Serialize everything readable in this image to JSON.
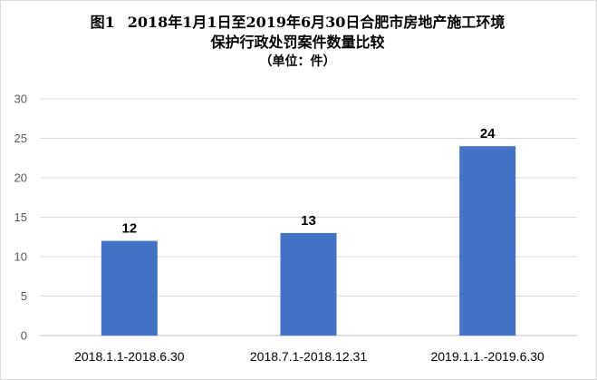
{
  "title": {
    "figure_no": "图1",
    "line1": "2018年1月1日至2019年6月30日合肥市房地产施工环境",
    "line2": "保护行政处罚案件数量比较",
    "unit": "（单位：件）"
  },
  "colors": {
    "bar": "#4472c4",
    "grid": "#d9d9d9",
    "axis": "#bfbfbf"
  },
  "chart_data": {
    "type": "bar",
    "categories": [
      "2018.1.1-2018.6.30",
      "2018.7.1-2018.12.31",
      "2019.1.1.-2019.6.30"
    ],
    "values": [
      12,
      13,
      24
    ],
    "ylim": [
      0,
      30
    ],
    "yticks": [
      0,
      5,
      10,
      15,
      20,
      25,
      30
    ],
    "grid": true,
    "data_labels": true,
    "xlabel": "",
    "ylabel": ""
  }
}
